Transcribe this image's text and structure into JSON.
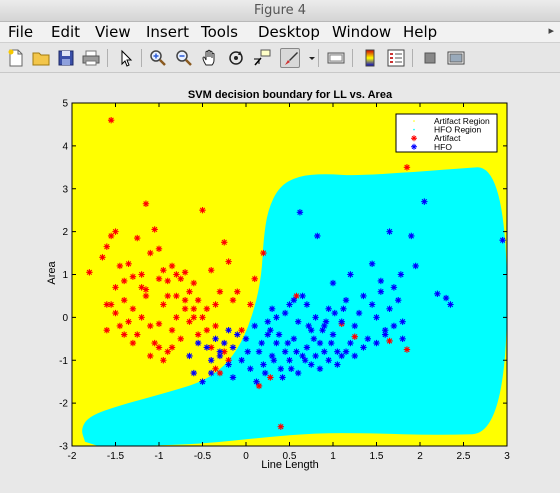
{
  "window": {
    "title": "Figure 4"
  },
  "menu": {
    "items": [
      "File",
      "Edit",
      "View",
      "Insert",
      "Tools",
      "Desktop",
      "Window",
      "Help"
    ],
    "overflow_icon": "chevron-icon"
  },
  "toolbar": {
    "icons": [
      "new-figure-icon",
      "open-file-icon",
      "save-icon",
      "print-icon",
      "edit-plot-arrow-icon",
      "zoom-in-icon",
      "zoom-out-icon",
      "pan-hand-icon",
      "rotate-3d-icon",
      "data-cursor-icon",
      "brush-icon",
      "brush-menu-arrow-icon",
      "link-plot-icon",
      "insert-colorbar-icon",
      "insert-legend-icon",
      "hide-plot-tools-icon",
      "show-plot-tools-icon"
    ]
  },
  "colors": {
    "artifact_region": "#ffff00",
    "hfo_region": "#00ffff",
    "artifact_marker": "#ff0000",
    "hfo_marker": "#0000ff",
    "figure_background": "#e8e8e8"
  },
  "chart_data": {
    "type": "scatter",
    "title": "SVM decision boundary for LL vs. Area",
    "xlabel": "Line Length",
    "ylabel": "Area",
    "xlim": [
      -2,
      3
    ],
    "ylim": [
      -3,
      5
    ],
    "xticks": [
      "-2",
      "-1.5",
      "-1",
      "-0.5",
      "0",
      "0.5",
      "1",
      "1.5",
      "2",
      "2.5",
      "3"
    ],
    "yticks": [
      "-3",
      "-2",
      "-1",
      "0",
      "1",
      "2",
      "3",
      "4",
      "5"
    ],
    "grid": false,
    "legend_position": "top-right",
    "legend": [
      "Artifact Region",
      "HFO Region",
      "Artifact",
      "HFO"
    ],
    "regions": {
      "hfo_boundary": [
        [
          -1.85,
          -2.9
        ],
        [
          -1.9,
          -2.6
        ],
        [
          -1.8,
          -2.3
        ],
        [
          -1.45,
          -2.05
        ],
        [
          -0.9,
          -1.75
        ],
        [
          -0.5,
          -1.5
        ],
        [
          -0.25,
          -1.15
        ],
        [
          -0.05,
          -0.6
        ],
        [
          0.1,
          0.2
        ],
        [
          0.18,
          1.0
        ],
        [
          0.2,
          1.8
        ],
        [
          0.25,
          2.5
        ],
        [
          0.38,
          3.05
        ],
        [
          0.6,
          3.3
        ],
        [
          0.9,
          3.35
        ],
        [
          1.3,
          3.3
        ],
        [
          2.3,
          3.45
        ],
        [
          3.0,
          3.55
        ],
        [
          3.0,
          -2.7
        ],
        [
          2.2,
          -2.75
        ],
        [
          1.4,
          -2.7
        ],
        [
          0.8,
          -2.7
        ],
        [
          0.2,
          -2.8
        ],
        [
          -0.5,
          -2.95
        ],
        [
          -1.2,
          -3.0
        ],
        [
          -1.7,
          -3.0
        ]
      ]
    },
    "series": [
      {
        "name": "Artifact",
        "marker": "*",
        "points": [
          [
            -1.55,
            4.6
          ],
          [
            -1.15,
            2.65
          ],
          [
            -1.8,
            1.05
          ],
          [
            -1.65,
            1.4
          ],
          [
            -1.6,
            1.65
          ],
          [
            -1.55,
            1.9
          ],
          [
            -1.5,
            2.0
          ],
          [
            -1.45,
            1.2
          ],
          [
            -1.4,
            0.85
          ],
          [
            -1.35,
            1.25
          ],
          [
            -1.3,
            0.95
          ],
          [
            -1.25,
            1.85
          ],
          [
            -1.2,
            1.0
          ],
          [
            -1.15,
            0.65
          ],
          [
            -1.1,
            1.5
          ],
          [
            -1.05,
            2.05
          ],
          [
            -1.0,
            1.6
          ],
          [
            -0.95,
            1.1
          ],
          [
            -0.9,
            0.85
          ],
          [
            -0.85,
            1.2
          ],
          [
            -0.8,
            0.5
          ],
          [
            -0.75,
            0.9
          ],
          [
            -0.7,
            1.05
          ],
          [
            -0.65,
            0.6
          ],
          [
            -0.6,
            0.8
          ],
          [
            -0.55,
            0.4
          ],
          [
            -0.5,
            2.5
          ],
          [
            -0.45,
            0.2
          ],
          [
            -0.4,
            1.1
          ],
          [
            -0.35,
            0.3
          ],
          [
            -0.3,
            0.6
          ],
          [
            -0.25,
            1.75
          ],
          [
            -0.2,
            1.3
          ],
          [
            -1.55,
            0.3
          ],
          [
            -1.5,
            0.1
          ],
          [
            -1.45,
            -0.2
          ],
          [
            -1.4,
            0.4
          ],
          [
            -1.35,
            -0.1
          ],
          [
            -1.3,
            0.2
          ],
          [
            -1.25,
            -0.4
          ],
          [
            -1.2,
            0.0
          ],
          [
            -1.15,
            0.5
          ],
          [
            -1.1,
            -0.2
          ],
          [
            -1.05,
            -0.6
          ],
          [
            -1.0,
            -0.15
          ],
          [
            -0.95,
            0.3
          ],
          [
            -0.9,
            -0.8
          ],
          [
            -0.85,
            -0.3
          ],
          [
            -0.8,
            0.0
          ],
          [
            -0.75,
            -0.5
          ],
          [
            -0.7,
            0.4
          ],
          [
            -0.65,
            -0.1
          ],
          [
            -0.6,
            0.2
          ],
          [
            -0.55,
            -0.4
          ],
          [
            -0.5,
            0.0
          ],
          [
            -0.45,
            -0.3
          ],
          [
            -0.4,
            -0.7
          ],
          [
            -0.35,
            -0.2
          ],
          [
            -0.3,
            -1.3
          ],
          [
            -0.25,
            -0.8
          ],
          [
            -0.2,
            -1.0
          ],
          [
            -0.15,
            0.4
          ],
          [
            -0.1,
            0.6
          ],
          [
            -1.6,
            0.3
          ],
          [
            -1.4,
            -0.4
          ],
          [
            -1.3,
            -0.6
          ],
          [
            -1.1,
            -0.9
          ],
          [
            -1.0,
            -0.7
          ],
          [
            -0.95,
            -1.0
          ],
          [
            -0.85,
            -0.7
          ],
          [
            -1.6,
            -0.3
          ],
          [
            -1.5,
            0.7
          ],
          [
            -1.2,
            0.7
          ],
          [
            -1.0,
            0.9
          ],
          [
            -0.9,
            0.5
          ],
          [
            -0.8,
            1.0
          ],
          [
            -0.7,
            0.2
          ],
          [
            -0.6,
            0.0
          ],
          [
            0.05,
            0.3
          ],
          [
            0.1,
            0.9
          ],
          [
            0.2,
            1.5
          ],
          [
            -0.05,
            -0.3
          ],
          [
            0.15,
            -1.6
          ],
          [
            0.28,
            -1.4
          ],
          [
            0.4,
            -2.55
          ],
          [
            1.1,
            -0.15
          ],
          [
            1.25,
            -0.45
          ],
          [
            1.65,
            -0.55
          ],
          [
            1.85,
            -0.75
          ],
          [
            1.85,
            3.5
          ],
          [
            0.58,
            0.5
          ],
          [
            -0.35,
            -1.2
          ]
        ]
      },
      {
        "name": "HFO",
        "marker": "*",
        "points": [
          [
            0.62,
            2.45
          ],
          [
            0.82,
            1.9
          ],
          [
            1.0,
            0.8
          ],
          [
            1.2,
            1.0
          ],
          [
            1.45,
            1.25
          ],
          [
            1.55,
            0.85
          ],
          [
            1.65,
            2.0
          ],
          [
            1.78,
            1.0
          ],
          [
            1.9,
            1.9
          ],
          [
            1.95,
            1.2
          ],
          [
            2.05,
            2.7
          ],
          [
            2.2,
            0.55
          ],
          [
            2.3,
            0.45
          ],
          [
            2.35,
            0.3
          ],
          [
            2.95,
            1.8
          ],
          [
            0.3,
            0.2
          ],
          [
            0.45,
            0.1
          ],
          [
            0.55,
            0.4
          ],
          [
            0.6,
            -0.1
          ],
          [
            0.7,
            0.3
          ],
          [
            0.75,
            -0.3
          ],
          [
            0.8,
            0.0
          ],
          [
            0.85,
            -0.6
          ],
          [
            0.9,
            -0.2
          ],
          [
            0.95,
            0.2
          ],
          [
            1.0,
            -0.4
          ],
          [
            1.05,
            -0.8
          ],
          [
            1.1,
            -0.1
          ],
          [
            1.15,
            0.4
          ],
          [
            1.2,
            -0.6
          ],
          [
            1.25,
            -0.2
          ],
          [
            1.3,
            0.1
          ],
          [
            1.35,
            0.5
          ],
          [
            1.4,
            -0.5
          ],
          [
            1.45,
            0.3
          ],
          [
            1.5,
            0.0
          ],
          [
            1.55,
            0.6
          ],
          [
            1.6,
            -0.3
          ],
          [
            1.65,
            0.2
          ],
          [
            1.7,
            0.7
          ],
          [
            1.75,
            0.4
          ],
          [
            1.8,
            -0.1
          ],
          [
            0.0,
            -0.5
          ],
          [
            0.1,
            -0.2
          ],
          [
            0.15,
            -0.8
          ],
          [
            0.2,
            -1.1
          ],
          [
            0.25,
            -0.4
          ],
          [
            0.3,
            -0.9
          ],
          [
            0.35,
            -0.6
          ],
          [
            0.4,
            -1.2
          ],
          [
            0.45,
            -0.8
          ],
          [
            0.5,
            -1.0
          ],
          [
            0.55,
            -0.5
          ],
          [
            0.6,
            -1.3
          ],
          [
            0.65,
            -0.9
          ],
          [
            0.7,
            -0.7
          ],
          [
            0.75,
            -1.1
          ],
          [
            0.8,
            -0.9
          ],
          [
            0.85,
            -1.2
          ],
          [
            0.9,
            -0.8
          ],
          [
            0.95,
            -1.0
          ],
          [
            1.05,
            -1.1
          ],
          [
            1.1,
            -0.9
          ],
          [
            -0.1,
            -0.4
          ],
          [
            -0.15,
            -0.7
          ],
          [
            -0.2,
            -0.3
          ],
          [
            -0.25,
            -0.6
          ],
          [
            -0.3,
            -0.9
          ],
          [
            -0.35,
            -0.5
          ],
          [
            -0.4,
            -1.0
          ],
          [
            -0.45,
            -0.7
          ],
          [
            -0.5,
            -1.5
          ],
          [
            -0.55,
            -0.6
          ],
          [
            -0.6,
            -1.3
          ],
          [
            -0.65,
            -0.9
          ],
          [
            -0.05,
            -1.0
          ],
          [
            0.05,
            -1.2
          ],
          [
            0.12,
            -1.5
          ],
          [
            0.22,
            -1.3
          ],
          [
            0.32,
            -1.0
          ],
          [
            0.42,
            -1.4
          ],
          [
            0.52,
            -1.2
          ],
          [
            0.25,
            -0.1
          ],
          [
            0.35,
            0.0
          ],
          [
            0.5,
            0.3
          ],
          [
            0.65,
            0.5
          ],
          [
            0.78,
            -0.5
          ],
          [
            0.88,
            -0.3
          ],
          [
            0.98,
            -0.6
          ],
          [
            1.15,
            -0.8
          ],
          [
            1.25,
            -0.9
          ],
          [
            1.35,
            -0.7
          ],
          [
            1.5,
            -0.6
          ],
          [
            1.6,
            -0.4
          ],
          [
            1.7,
            -0.2
          ],
          [
            1.8,
            -0.5
          ],
          [
            -0.2,
            -1.1
          ],
          [
            -0.3,
            -0.8
          ],
          [
            0.02,
            -0.8
          ],
          [
            0.18,
            -0.6
          ],
          [
            0.28,
            -0.3
          ],
          [
            0.38,
            -0.4
          ],
          [
            0.48,
            -0.6
          ],
          [
            0.58,
            -0.8
          ],
          [
            0.68,
            -1.0
          ],
          [
            0.72,
            -0.2
          ],
          [
            0.92,
            -0.1
          ],
          [
            1.02,
            0.1
          ],
          [
            1.12,
            0.2
          ],
          [
            -0.15,
            -1.4
          ],
          [
            -0.4,
            -1.3
          ]
        ]
      }
    ]
  }
}
